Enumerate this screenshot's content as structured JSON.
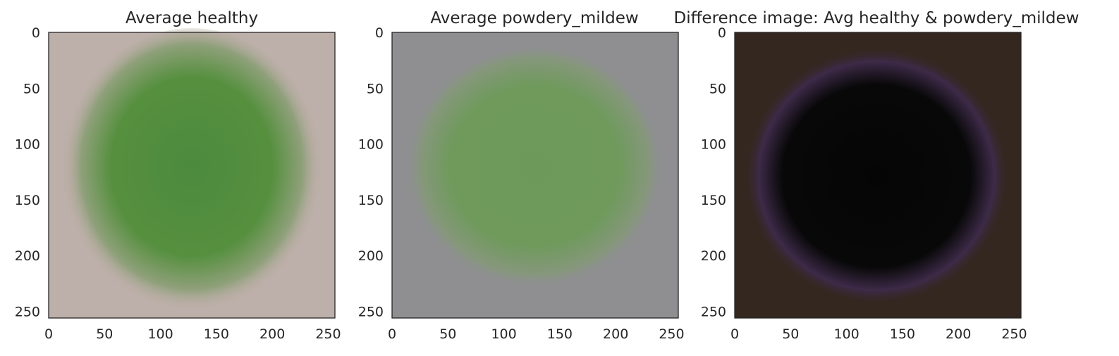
{
  "chart_data": [
    {
      "type": "heatmap",
      "title": "Average healthy",
      "xlim": [
        0,
        256
      ],
      "ylim": [
        256,
        0
      ],
      "xticks": [
        0,
        50,
        100,
        150,
        200,
        250
      ],
      "yticks": [
        0,
        50,
        100,
        150,
        200,
        250
      ],
      "colors": {
        "background": "#bdafa9",
        "leaf": "#4c8a3d",
        "edge": "#8fa07a"
      }
    },
    {
      "type": "heatmap",
      "title": "Average powdery_mildew",
      "xlim": [
        0,
        256
      ],
      "ylim": [
        256,
        0
      ],
      "xticks": [
        0,
        50,
        100,
        150,
        200,
        250
      ],
      "yticks": [
        0,
        50,
        100,
        150,
        200,
        250
      ],
      "colors": {
        "background": "#8f8f92",
        "leaf": "#6d9a5b",
        "edge": "#86977c"
      }
    },
    {
      "type": "heatmap",
      "title": "Difference image: Avg healthy & powdery_mildew",
      "xlim": [
        0,
        256
      ],
      "ylim": [
        256,
        0
      ],
      "xticks": [
        0,
        50,
        100,
        150,
        200,
        250
      ],
      "yticks": [
        0,
        50,
        100,
        150,
        200,
        250
      ],
      "colors": {
        "background": "#33271f",
        "leaf": "#050505",
        "edge": "#3d2a48"
      }
    }
  ]
}
